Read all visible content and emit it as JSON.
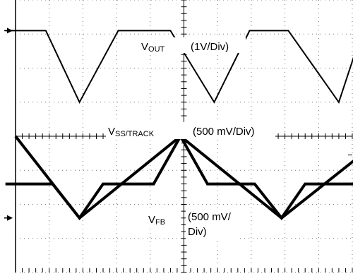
{
  "chart_data": {
    "type": "line",
    "title": "",
    "xlabel": "",
    "ylabel": "",
    "grid": true,
    "grid_divisions": {
      "horizontal": 10,
      "vertical": 8
    },
    "xlim": [
      0,
      10
    ],
    "ylim": [
      -4,
      4
    ],
    "channel_scales": [
      {
        "signal": "VOUT",
        "scale": "(1V/Div)"
      },
      {
        "signal": "VSS/TRACK",
        "scale": "(500 mV/Div)"
      },
      {
        "signal": "VFB",
        "scale_line1": "(500 mV/",
        "scale_line2": "Div)"
      }
    ],
    "series": [
      {
        "name": "VOUT",
        "color": "#000000",
        "x": [
          -0.3,
          0.9,
          1.9,
          3.05,
          4.6,
          5.9,
          6.95,
          8.1,
          9.6,
          10.3
        ],
        "y": [
          3.1,
          3.1,
          1.0,
          3.1,
          3.1,
          1.0,
          3.1,
          3.1,
          1.0,
          3.1
        ]
      },
      {
        "name": "VSS/TRACK",
        "color": "#000000",
        "x": [
          0.0,
          1.9,
          4.9,
          7.9,
          10.2
        ],
        "y": [
          0.0,
          -2.4,
          0.0,
          -2.4,
          -0.6
        ]
      },
      {
        "name": "VFB",
        "color": "#000000",
        "x": [
          -0.3,
          1.1,
          1.9,
          2.6,
          4.1,
          4.9,
          5.7,
          7.1,
          7.9,
          8.6,
          10.3
        ],
        "y": [
          -1.4,
          -1.4,
          -2.4,
          -1.4,
          -1.4,
          0.0,
          -1.4,
          -1.4,
          -2.4,
          -1.4,
          -1.4
        ]
      }
    ],
    "labels": {
      "vout_main": "V",
      "vout_sub": "OUT",
      "vout_scale": "(1V/Div)",
      "vss_main": "V",
      "vss_sub": "SS/TRACK",
      "vss_scale": "(500 mV/Div)",
      "vfb_main": "V",
      "vfb_sub": "FB",
      "vfb_scale_1": "(500 mV/",
      "vfb_scale_2": "Div)"
    }
  }
}
